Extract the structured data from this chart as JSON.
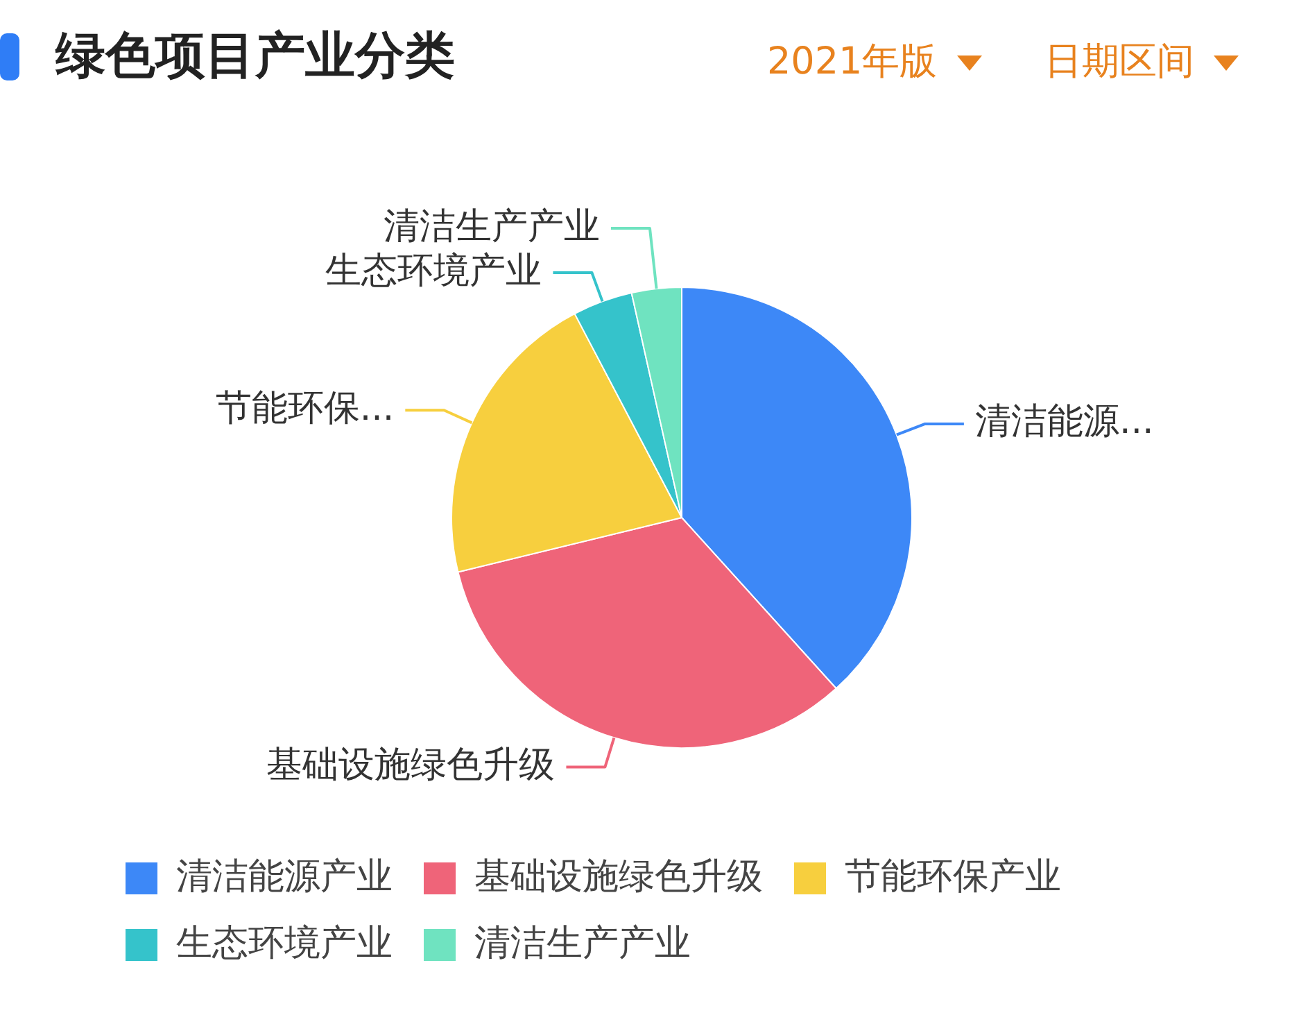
{
  "chart_data": {
    "type": "pie",
    "title": "绿色项目产业分类",
    "annotations": [
      "2021年版",
      "日期区间",
      {
        "text": "清洁能源...",
        "x": "清洁能源产业"
      },
      {
        "text": "基础设施绿色升级",
        "x": "基础设施绿色升级"
      },
      {
        "text": "节能环保...",
        "x": "节能环保产业"
      },
      {
        "text": "生态环境产业",
        "x": "生态环境产业"
      },
      {
        "text": "清洁生产产业",
        "x": "清洁生产产业"
      }
    ],
    "categories": [
      "清洁能源产业",
      "基础设施绿色升级",
      "节能环保产业",
      "生态环境产业",
      "清洁生产产业"
    ],
    "values": [
      38.3,
      32.9,
      21.1,
      4.2,
      3.5
    ],
    "colors": [
      "#3d88f7",
      "#ef6479",
      "#f7cf3e",
      "#35c3cb",
      "#6fe3c0"
    ],
    "legend": "bottom"
  }
}
